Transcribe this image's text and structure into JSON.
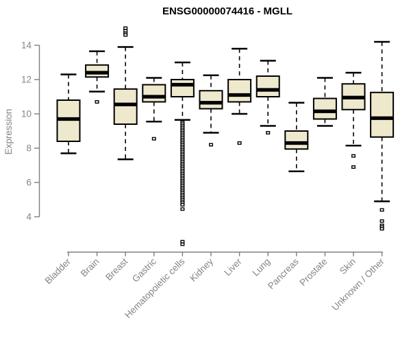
{
  "chart_data": {
    "type": "boxplot",
    "title": "ENSG00000074416 - MGLL",
    "xlabel": "",
    "ylabel": "Expression",
    "ylim": [
      4,
      14
    ],
    "yticks": [
      4,
      6,
      8,
      10,
      12,
      14
    ],
    "grid": false,
    "legend": "none",
    "colors": {
      "box_fill": "#EEE8CD",
      "box_stroke": "#000000",
      "axis": "#7E7E7E",
      "label_text": "#848484",
      "background": "#ffffff"
    },
    "categories": [
      "Bladder",
      "Brain",
      "Breast",
      "Gastric",
      "Hematopoietic cells",
      "Kidney",
      "Liver",
      "Lung",
      "Pancreas",
      "Prostate",
      "Skin",
      "Unknown / Other"
    ],
    "series": [
      {
        "category": "Bladder",
        "whisker_low": 7.7,
        "q1": 8.4,
        "median": 9.7,
        "q3": 10.8,
        "whisker_high": 12.3,
        "outliers": []
      },
      {
        "category": "Brain",
        "whisker_low": 11.3,
        "q1": 12.15,
        "median": 12.4,
        "q3": 12.85,
        "whisker_high": 13.65,
        "outliers": [
          10.7
        ]
      },
      {
        "category": "Breast",
        "whisker_low": 7.35,
        "q1": 9.4,
        "median": 10.55,
        "q3": 11.45,
        "whisker_high": 13.9,
        "outliers": [
          15.0,
          14.85,
          14.7,
          14.6
        ]
      },
      {
        "category": "Gastric",
        "whisker_low": 9.55,
        "q1": 10.7,
        "median": 11.0,
        "q3": 11.7,
        "whisker_high": 12.1,
        "outliers": [
          8.55
        ]
      },
      {
        "category": "Hematopoietic cells",
        "whisker_low": 9.65,
        "q1": 11.0,
        "median": 11.7,
        "q3": 12.0,
        "whisker_high": 13.0,
        "outliers": [
          9.5,
          9.4,
          9.3,
          9.2,
          9.1,
          9.0,
          8.9,
          8.8,
          8.7,
          8.6,
          8.5,
          8.4,
          8.3,
          8.2,
          8.1,
          8.0,
          7.9,
          7.8,
          7.7,
          7.6,
          7.5,
          7.4,
          7.3,
          7.2,
          7.1,
          7.0,
          6.9,
          6.8,
          6.7,
          6.6,
          6.5,
          6.4,
          6.3,
          6.2,
          6.1,
          6.0,
          5.9,
          5.8,
          5.7,
          5.6,
          5.5,
          5.4,
          5.3,
          5.2,
          5.1,
          5.0,
          4.9,
          4.8,
          4.7,
          4.45,
          2.55,
          2.4
        ]
      },
      {
        "category": "Kidney",
        "whisker_low": 8.9,
        "q1": 10.3,
        "median": 10.65,
        "q3": 11.35,
        "whisker_high": 12.25,
        "outliers": [
          8.2
        ]
      },
      {
        "category": "Liver",
        "whisker_low": 10.0,
        "q1": 10.7,
        "median": 11.1,
        "q3": 12.0,
        "whisker_high": 13.8,
        "outliers": [
          8.3
        ]
      },
      {
        "category": "Lung",
        "whisker_low": 9.3,
        "q1": 11.0,
        "median": 11.4,
        "q3": 12.2,
        "whisker_high": 13.1,
        "outliers": [
          8.9
        ]
      },
      {
        "category": "Pancreas",
        "whisker_low": 6.65,
        "q1": 7.95,
        "median": 8.3,
        "q3": 9.0,
        "whisker_high": 10.65,
        "outliers": []
      },
      {
        "category": "Prostate",
        "whisker_low": 9.3,
        "q1": 9.7,
        "median": 10.15,
        "q3": 10.9,
        "whisker_high": 12.1,
        "outliers": []
      },
      {
        "category": "Skin",
        "whisker_low": 8.15,
        "q1": 10.25,
        "median": 10.95,
        "q3": 11.75,
        "whisker_high": 12.4,
        "outliers": [
          7.55,
          6.9
        ]
      },
      {
        "category": "Unknown / Other",
        "whisker_low": 4.9,
        "q1": 8.65,
        "median": 9.75,
        "q3": 11.25,
        "whisker_high": 14.2,
        "outliers": [
          4.4,
          3.75,
          3.5,
          3.4,
          3.3
        ]
      }
    ]
  }
}
